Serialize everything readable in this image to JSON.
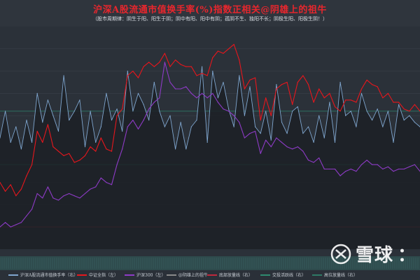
{
  "chart_data": {
    "type": "line",
    "title": "沪深A股流通市值换手率(%)指数正相关@阴雄上的祖牛",
    "subtitle": "（股市周期律：阴生于阳、阳生于阴；阴中有阳、阳中有阴；孤阴不生、独阳不长；阴极生阳、阳极生阴！）",
    "y_left_range": [
      0,
      100
    ],
    "y_right_range": [
      0,
      100
    ],
    "grid": true,
    "legend_placement": "bottom",
    "series": [
      {
        "name": "沪深A股流通市值换手率（右）",
        "axis": "right",
        "color": "#7fa6cf",
        "values": [
          50,
          62,
          48,
          55,
          45,
          58,
          48,
          70,
          57,
          67,
          60,
          53,
          78,
          58,
          62,
          67,
          46,
          62,
          48,
          55,
          70,
          58,
          63,
          53,
          80,
          62,
          70,
          65,
          58,
          75,
          62,
          55,
          60,
          45,
          57,
          45,
          55,
          58,
          82,
          48,
          80,
          68,
          75,
          63,
          55,
          78,
          60,
          73,
          55,
          52,
          62,
          49,
          74,
          57,
          52,
          62,
          64,
          52,
          55,
          48,
          60,
          50,
          66,
          48,
          75,
          60,
          62,
          55,
          70,
          62,
          58,
          63,
          55,
          62,
          48,
          65,
          58,
          60,
          57,
          55
        ]
      },
      {
        "name": "中证全指（左）",
        "axis": "left",
        "color": "#e8161c",
        "values": [
          30,
          26,
          29,
          24,
          27,
          33,
          38,
          53,
          48,
          56,
          46,
          44,
          42,
          43,
          39,
          40,
          42,
          46,
          44,
          50,
          45,
          44,
          60,
          63,
          78,
          80,
          77,
          82,
          84,
          82,
          84,
          88,
          82,
          85,
          83,
          82,
          82,
          78,
          79,
          78,
          86,
          89,
          88,
          90,
          92,
          85,
          72,
          76,
          77,
          58,
          68,
          60,
          72,
          74,
          75,
          65,
          75,
          78,
          74,
          66,
          72,
          68,
          70,
          64,
          62,
          67,
          67,
          66,
          72,
          76,
          74,
          73,
          68,
          70,
          66,
          66,
          63,
          62,
          65,
          62
        ]
      },
      {
        "name": "沪深300（左）",
        "axis": "left",
        "color": "#8e3bc7",
        "values": [
          10,
          12,
          10,
          11,
          12,
          15,
          18,
          25,
          23,
          28,
          23,
          22,
          24,
          25,
          24,
          23,
          25,
          27,
          28,
          32,
          30,
          29,
          38,
          45,
          55,
          58,
          54,
          58,
          63,
          66,
          68,
          84,
          75,
          72,
          72,
          73,
          70,
          68,
          70,
          68,
          70,
          66,
          63,
          62,
          60,
          57,
          50,
          52,
          53,
          43,
          49,
          46,
          50,
          48,
          46,
          45,
          46,
          44,
          40,
          39,
          41,
          36,
          36,
          36,
          33,
          35,
          36,
          35,
          38,
          40,
          38,
          38,
          36,
          37,
          35,
          36,
          36,
          37,
          38,
          35
        ]
      }
    ],
    "reference_lines": [
      {
        "name": "@阴雄上的祖牛",
        "color": "#8a8a8a"
      },
      {
        "name": "底部放量线（右）",
        "color": "#c0283c",
        "value": 10
      },
      {
        "name": "交投活跃线（右）",
        "color": "#2e8a6f",
        "value": 38
      },
      {
        "name": "高位放量线（右）",
        "color": "#2e7a66",
        "value": 62
      }
    ]
  },
  "watermark": {
    "text": "雪球",
    "icon": "snowball-logo-icon",
    "suffix": "："
  },
  "colors": {
    "background": "#2b3139",
    "plot_bg": "#2b3139",
    "title": "#e8262d"
  }
}
